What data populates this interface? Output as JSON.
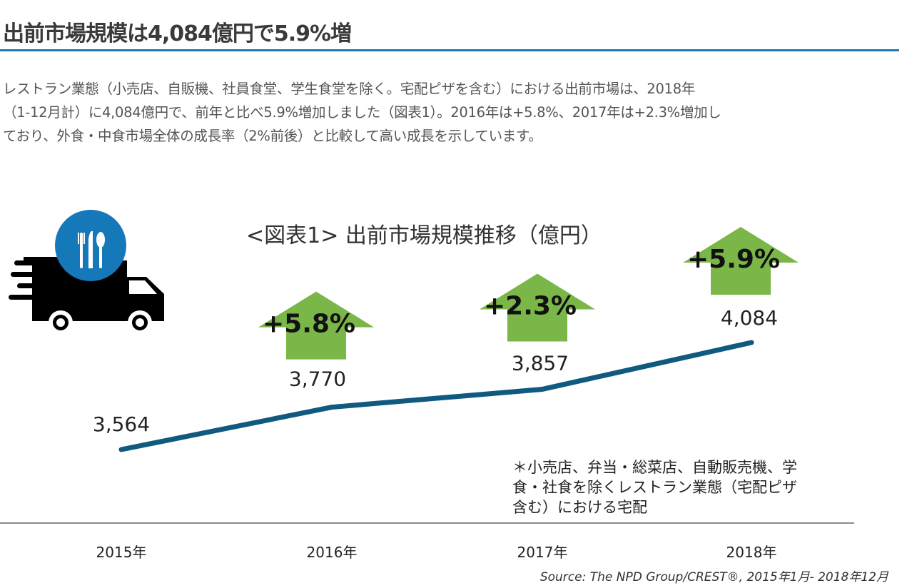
{
  "article": {
    "heading": "出前市場規模は4,084億円で5.9%増",
    "paragraph_lines": [
      "レストラン業態（小売店、自販機、社員食堂、学生食堂を除く。宅配ピザを含む）における出前市場は、2018年",
      "（1-12月計）に4,084億円で、前年と比べ5.9%増加しました（図表1）。2016年は+5.8%、2017年は+2.3%増加し",
      "ており、外食・中食市場全体の成長率（2%前後）と比較して高い成長を示しています。"
    ]
  },
  "chart_data": {
    "type": "line",
    "title": "<図表1> 出前市場規模推移（億円）",
    "categories": [
      "2015年",
      "2016年",
      "2017年",
      "2018年"
    ],
    "values": [
      3564,
      3770,
      3857,
      4084
    ],
    "value_labels": [
      "3,564",
      "3,770",
      "3,857",
      "4,084"
    ],
    "growth_labels": [
      "",
      "+5.8%",
      "+2.3%",
      "+5.9%"
    ],
    "note_lines": [
      "＊小売店、弁当・総菜店、自動販売機、学",
      "食・社食を除くレストラン業態（宅配ピザ",
      "含む）における宅配"
    ],
    "source": "Source: The NPD Group/CREST®, 2015年1月- 2018年12月",
    "grid": false,
    "colors": {
      "line": "#0f5a7e",
      "arrow": "#7ab648",
      "icon_circle": "#1579b9",
      "heading_rule": "#1b79b3"
    },
    "icon": "delivery-truck-cutlery-icon"
  }
}
